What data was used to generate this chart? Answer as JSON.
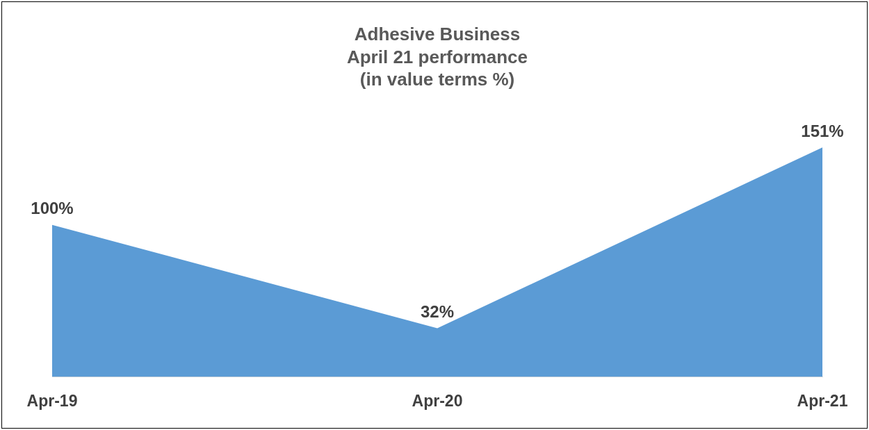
{
  "chart_data": {
    "type": "area",
    "title": "Adhesive Business\nApril 21 performance\n(in value terms %)",
    "categories": [
      "Apr-19",
      "Apr-20",
      "Apr-21"
    ],
    "values": [
      100,
      32,
      151
    ],
    "value_labels": [
      "100%",
      "32%",
      "151%"
    ],
    "color": "#5b9bd5",
    "grid": false,
    "legend": false
  }
}
